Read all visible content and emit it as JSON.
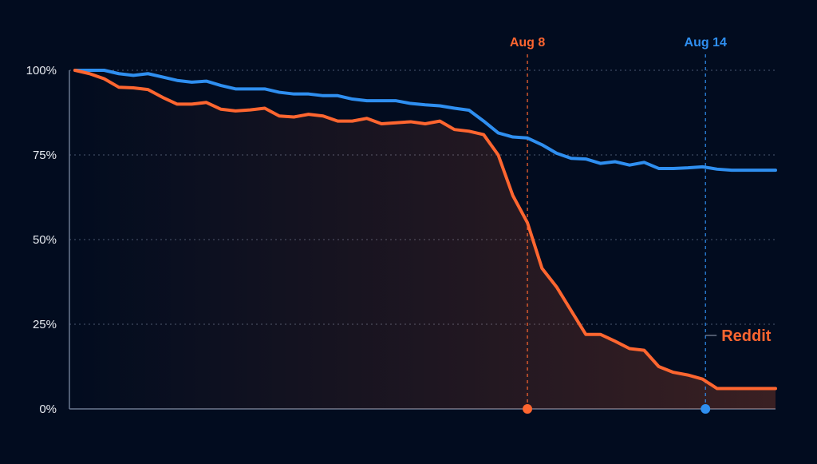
{
  "chart_data": {
    "type": "line",
    "ylim": [
      0,
      100
    ],
    "yticks": [
      {
        "value": 0,
        "label": "0%"
      },
      {
        "value": 25,
        "label": "25%"
      },
      {
        "value": 50,
        "label": "50%"
      },
      {
        "value": 75,
        "label": "75%"
      },
      {
        "value": 100,
        "label": "100%"
      }
    ],
    "grid": true,
    "xlim": [
      0,
      48
    ],
    "x": [
      0,
      1,
      2,
      3,
      4,
      5,
      6,
      7,
      8,
      9,
      10,
      11,
      12,
      13,
      14,
      15,
      16,
      17,
      18,
      19,
      20,
      21,
      22,
      23,
      24,
      25,
      26,
      27,
      28,
      29,
      30,
      31,
      32,
      33,
      34,
      35,
      36,
      37,
      38,
      39,
      40,
      41,
      42,
      43,
      44,
      45,
      46,
      47,
      48
    ],
    "series": [
      {
        "id": "blue",
        "color": "#2f8ff0",
        "area": false,
        "values": [
          100,
          100,
          100,
          99,
          98.5,
          99,
          98,
          97,
          96.5,
          96.8,
          95.5,
          94.5,
          94.5,
          94.5,
          93.5,
          93,
          93,
          92.5,
          92.5,
          91.5,
          91,
          91,
          91,
          90.2,
          89.8,
          89.5,
          88.8,
          88.2,
          85,
          81.5,
          80.3,
          80,
          78,
          75.5,
          74,
          73.8,
          72.5,
          73,
          72,
          72.8,
          71,
          71,
          71.2,
          71.5,
          70.8,
          70.5,
          70.5,
          70.5,
          70.5
        ]
      },
      {
        "id": "reddit",
        "name": "Reddit",
        "color": "#ff6630",
        "area": true,
        "values": [
          100,
          99,
          97.5,
          95,
          94.8,
          94.3,
          92,
          90,
          90,
          90.5,
          88.5,
          88,
          88.3,
          88.8,
          86.5,
          86.2,
          87,
          86.5,
          85,
          85,
          85.8,
          84.2,
          84.5,
          84.8,
          84.2,
          85,
          82.5,
          82,
          81,
          75,
          63,
          55,
          41.5,
          36,
          29,
          22,
          22,
          20,
          17.8,
          17.3,
          12.5,
          10.8,
          10,
          8.8,
          6,
          6,
          6,
          6,
          6
        ]
      }
    ],
    "markers": [
      {
        "label": "Aug 8",
        "x": 31,
        "color": "#ff6630"
      },
      {
        "label": "Aug 14",
        "x": 43.2,
        "color": "#2f8ff0"
      }
    ],
    "series_label": {
      "text": "Reddit",
      "color": "#ff6630"
    }
  }
}
